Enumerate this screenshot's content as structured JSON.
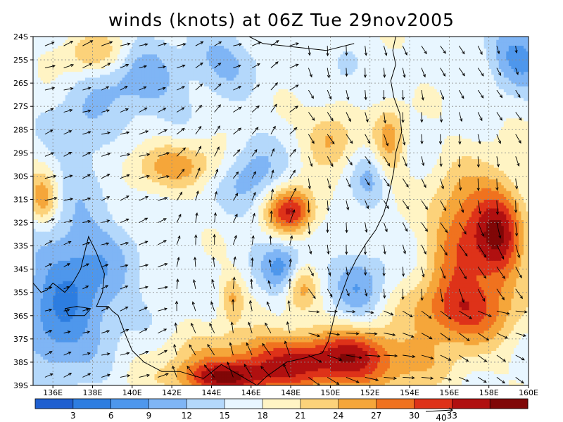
{
  "title": "winds (knots) at 06Z Tue 29nov2005",
  "map": {
    "lon_min": 135,
    "lon_max": 160,
    "lat_min": -39,
    "lat_max": -24,
    "grid": true,
    "lat_ticks": [
      {
        "value": -24,
        "label": "24S"
      },
      {
        "value": -25,
        "label": "25S"
      },
      {
        "value": -26,
        "label": "26S"
      },
      {
        "value": -27,
        "label": "27S"
      },
      {
        "value": -28,
        "label": "28S"
      },
      {
        "value": -29,
        "label": "29S"
      },
      {
        "value": -30,
        "label": "30S"
      },
      {
        "value": -31,
        "label": "31S"
      },
      {
        "value": -32,
        "label": "32S"
      },
      {
        "value": -33,
        "label": "33S"
      },
      {
        "value": -34,
        "label": "34S"
      },
      {
        "value": -35,
        "label": "35S"
      },
      {
        "value": -36,
        "label": "36S"
      },
      {
        "value": -37,
        "label": "37S"
      },
      {
        "value": -38,
        "label": "38S"
      },
      {
        "value": -39,
        "label": "39S"
      }
    ],
    "lon_ticks": [
      {
        "value": 136,
        "label": "136E"
      },
      {
        "value": 138,
        "label": "138E"
      },
      {
        "value": 140,
        "label": "140E"
      },
      {
        "value": 142,
        "label": "142E"
      },
      {
        "value": 144,
        "label": "144E"
      },
      {
        "value": 146,
        "label": "146E"
      },
      {
        "value": 148,
        "label": "148E"
      },
      {
        "value": 150,
        "label": "150E"
      },
      {
        "value": 152,
        "label": "152E"
      },
      {
        "value": 154,
        "label": "154E"
      },
      {
        "value": 156,
        "label": "156E"
      },
      {
        "value": 158,
        "label": "158E"
      },
      {
        "value": 160,
        "label": "160E"
      }
    ],
    "speed_features": [
      {
        "lon": 137.2,
        "lat": -34.5,
        "rx": 2.6,
        "ry": 3.2,
        "amp": -10
      },
      {
        "lon": 136.0,
        "lat": -37.0,
        "rx": 1.6,
        "ry": 1.8,
        "amp": -5
      },
      {
        "lon": 140.5,
        "lat": -26.0,
        "rx": 2.0,
        "ry": 1.6,
        "amp": -7
      },
      {
        "lon": 137.5,
        "lat": -28.0,
        "rx": 1.6,
        "ry": 2.0,
        "amp": -5
      },
      {
        "lon": 144.5,
        "lat": -25.0,
        "rx": 1.8,
        "ry": 1.3,
        "amp": -6
      },
      {
        "lon": 148.0,
        "lat": -34.0,
        "rx": 1.3,
        "ry": 1.1,
        "amp": -14
      },
      {
        "lon": 146.0,
        "lat": -30.0,
        "rx": 1.5,
        "ry": 1.6,
        "amp": -7
      },
      {
        "lon": 152.0,
        "lat": -30.0,
        "rx": 0.9,
        "ry": 1.2,
        "amp": -5
      },
      {
        "lon": 151.5,
        "lat": -34.8,
        "rx": 1.4,
        "ry": 1.5,
        "amp": -7
      },
      {
        "lon": 159.5,
        "lat": -24.8,
        "rx": 1.6,
        "ry": 1.4,
        "amp": -9
      },
      {
        "lon": 150.8,
        "lat": -25.2,
        "rx": 0.6,
        "ry": 0.6,
        "amp": -6
      },
      {
        "lon": 138.0,
        "lat": -24.7,
        "rx": 1.5,
        "ry": 0.9,
        "amp": 7
      },
      {
        "lon": 135.5,
        "lat": -31.0,
        "rx": 0.8,
        "ry": 1.2,
        "amp": 10
      },
      {
        "lon": 142.0,
        "lat": -29.5,
        "rx": 2.6,
        "ry": 1.0,
        "amp": 8
      },
      {
        "lon": 148.0,
        "lat": -31.5,
        "rx": 1.2,
        "ry": 1.0,
        "amp": 17
      },
      {
        "lon": 150.0,
        "lat": -28.3,
        "rx": 1.2,
        "ry": 1.2,
        "amp": 8
      },
      {
        "lon": 153.0,
        "lat": -28.5,
        "rx": 0.8,
        "ry": 1.6,
        "amp": 8
      },
      {
        "lon": 156.5,
        "lat": -32.5,
        "rx": 1.5,
        "ry": 2.6,
        "amp": 12
      },
      {
        "lon": 158.5,
        "lat": -32.5,
        "rx": 1.3,
        "ry": 2.4,
        "amp": 17
      },
      {
        "lon": 156.5,
        "lat": -35.8,
        "rx": 2.6,
        "ry": 1.4,
        "amp": 13
      },
      {
        "lon": 149.0,
        "lat": -38.0,
        "rx": 5.5,
        "ry": 1.3,
        "amp": 17
      },
      {
        "lon": 144.5,
        "lat": -38.7,
        "rx": 2.2,
        "ry": 0.7,
        "amp": 14
      },
      {
        "lon": 148.5,
        "lat": -34.5,
        "rx": 0.9,
        "ry": 1.2,
        "amp": 14
      },
      {
        "lon": 145.0,
        "lat": -35.2,
        "rx": 0.6,
        "ry": 1.0,
        "amp": 7
      },
      {
        "lon": 151.5,
        "lat": -37.5,
        "rx": 1.5,
        "ry": 1.1,
        "amp": 5
      }
    ]
  },
  "colorbar": {
    "colors": [
      "#1f5fd0",
      "#2d7de0",
      "#4e97ec",
      "#7fb5f5",
      "#b4d8fb",
      "#e8f6ff",
      "#fff4c4",
      "#fcd27a",
      "#f5a63a",
      "#f0721f",
      "#de3219",
      "#b01010",
      "#800707"
    ],
    "tick_labels": [
      "3",
      "6",
      "9",
      "12",
      "15",
      "18",
      "21",
      "24",
      "27",
      "30",
      "33"
    ],
    "vector_reference": "40"
  }
}
